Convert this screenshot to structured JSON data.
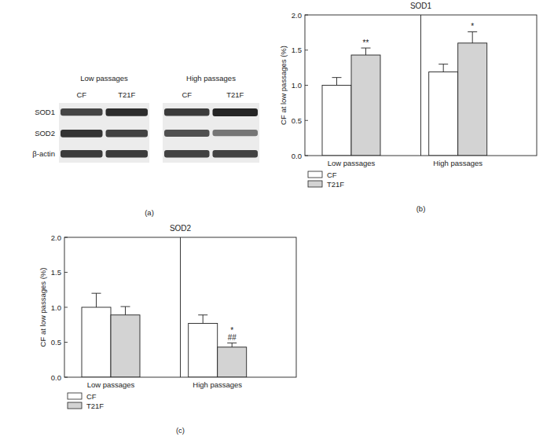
{
  "western_blot": {
    "label": "(a)",
    "panels": [
      {
        "title": "Low passages",
        "lanes": [
          "CF",
          "T21F"
        ]
      },
      {
        "title": "High passages",
        "lanes": [
          "CF",
          "T21F"
        ]
      }
    ],
    "rows": [
      "SOD1",
      "SOD2",
      "β-actin"
    ]
  },
  "chart_data": [
    {
      "type": "bar",
      "title": "SOD1",
      "subtitle": "(b)",
      "y_label": "CF at low passages (%)",
      "categories": [
        "Low passages",
        "High passages"
      ],
      "series": [
        {
          "name": "CF",
          "color": "#ffffff",
          "values": [
            1.0,
            1.19
          ],
          "errors": [
            0.11,
            0.11
          ]
        },
        {
          "name": "T21F",
          "color": "#d3d3d3",
          "values": [
            1.43,
            1.6
          ],
          "errors": [
            0.1,
            0.16
          ],
          "annotations": [
            [
              "**"
            ],
            [
              "*"
            ]
          ]
        }
      ],
      "ylim": [
        0,
        2
      ],
      "yticks": [
        {
          "value": 0,
          "label": "0.0"
        },
        {
          "value": 0.5,
          "label": "0.5"
        },
        {
          "value": 1,
          "label": "1.0"
        },
        {
          "value": 1.5,
          "label": "1.5"
        },
        {
          "value": 2,
          "label": "2.0"
        }
      ],
      "legend": "below"
    },
    {
      "type": "bar",
      "title": "SOD2",
      "subtitle": "(c)",
      "y_label": "CF at low passages (%)",
      "categories": [
        "Low passages",
        "High passages"
      ],
      "series": [
        {
          "name": "CF",
          "color": "#ffffff",
          "values": [
            1.0,
            0.77
          ],
          "errors": [
            0.2,
            0.12
          ]
        },
        {
          "name": "T21F",
          "color": "#d3d3d3",
          "values": [
            0.89,
            0.43
          ],
          "errors": [
            0.12,
            0.06
          ],
          "annotations": [
            null,
            [
              "*",
              "##"
            ]
          ]
        }
      ],
      "ylim": [
        0,
        2
      ],
      "yticks": [
        {
          "value": 0,
          "label": "0.0"
        },
        {
          "value": 0.5,
          "label": "0.5"
        },
        {
          "value": 1,
          "label": "1.0"
        },
        {
          "value": 1.5,
          "label": "1.5"
        },
        {
          "value": 2,
          "label": "2.0"
        }
      ],
      "legend": "below"
    }
  ]
}
